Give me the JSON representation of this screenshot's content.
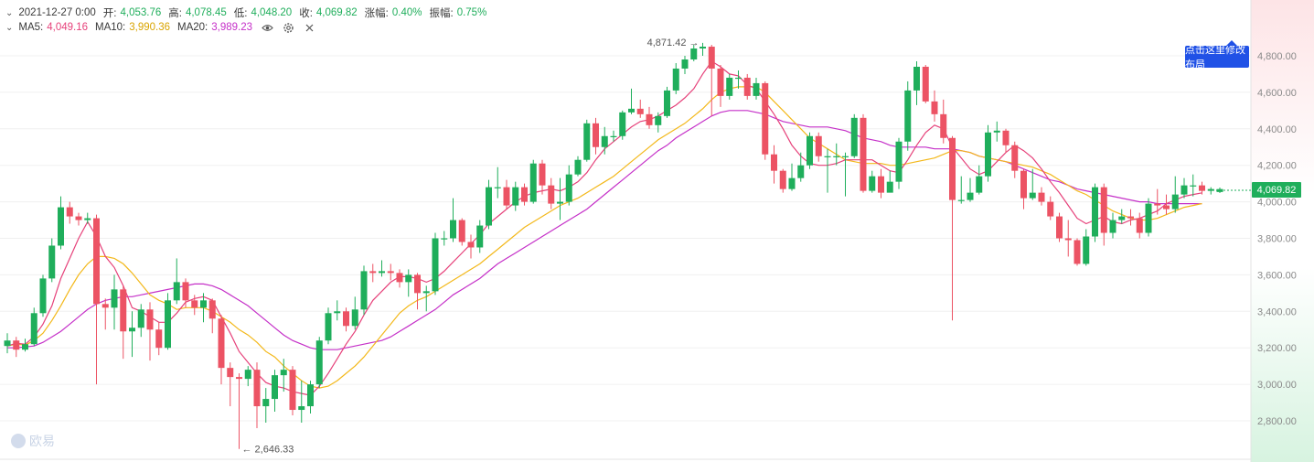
{
  "ohlc_header": {
    "date": "2021-12-27 0:00",
    "open_label": "开:",
    "open": "4,053.76",
    "high_label": "高:",
    "high": "4,078.45",
    "low_label": "低:",
    "low": "4,048.20",
    "close_label": "收:",
    "close": "4,069.82",
    "change_label": "涨幅:",
    "change": "0.40%",
    "amplitude_label": "振幅:",
    "amplitude": "0.75%"
  },
  "ma_header": {
    "ma5_label": "MA5:",
    "ma5": "4,049.16",
    "ma10_label": "MA10:",
    "ma10": "3,990.36",
    "ma20_label": "MA20:",
    "ma20": "3,989.23",
    "icons": [
      "eye-icon",
      "gear-icon",
      "close-icon"
    ]
  },
  "layout_button": "点击这里修改布局",
  "last_price": "4,069.82",
  "watermark": "欧易",
  "colors": {
    "up": "#1fae5b",
    "down": "#ec5364",
    "ma5": "#e6417a",
    "ma10": "#f3b81a",
    "ma20": "#c530c8",
    "tip": "#2051e6"
  },
  "chart_data": {
    "type": "candlestick",
    "y_axis": {
      "ticks": [
        2800,
        3000,
        3200,
        3400,
        3600,
        3800,
        4000,
        4200,
        4400,
        4600,
        4800
      ],
      "tick_labels": [
        "2,800.00",
        "3,000.00",
        "3,200.00",
        "3,400.00",
        "3,600.00",
        "3,800.00",
        "4,000.00",
        "4,200.00",
        "4,400.00",
        "4,600.00",
        "4,800.00"
      ],
      "range": [
        2640,
        4880
      ],
      "grid": true
    },
    "max_annotation": {
      "label": "4,871.42 →",
      "value": 4871.42
    },
    "min_annotation": {
      "label": "← 2,646.33",
      "value": 2646.33
    },
    "candles": [
      [
        3210,
        3240,
        3280,
        3170
      ],
      [
        3240,
        3190,
        3260,
        3150
      ],
      [
        3190,
        3220,
        3250,
        3180
      ],
      [
        3220,
        3390,
        3420,
        3210
      ],
      [
        3390,
        3580,
        3600,
        3370
      ],
      [
        3580,
        3760,
        3800,
        3560
      ],
      [
        3760,
        3970,
        4030,
        3740
      ],
      [
        3970,
        3920,
        4000,
        3880
      ],
      [
        3920,
        3900,
        3940,
        3870
      ],
      [
        3900,
        3910,
        3940,
        3880
      ],
      [
        3910,
        3440,
        3930,
        3000
      ],
      [
        3440,
        3420,
        3470,
        3300
      ],
      [
        3420,
        3520,
        3600,
        3300
      ],
      [
        3520,
        3290,
        3540,
        3140
      ],
      [
        3290,
        3310,
        3400,
        3150
      ],
      [
        3310,
        3410,
        3440,
        3260
      ],
      [
        3410,
        3300,
        3450,
        3130
      ],
      [
        3300,
        3200,
        3340,
        3160
      ],
      [
        3200,
        3460,
        3500,
        3190
      ],
      [
        3460,
        3560,
        3690,
        3440
      ],
      [
        3560,
        3460,
        3580,
        3420
      ],
      [
        3460,
        3420,
        3490,
        3380
      ],
      [
        3420,
        3460,
        3500,
        3340
      ],
      [
        3460,
        3360,
        3470,
        3280
      ],
      [
        3360,
        3090,
        3380,
        3000
      ],
      [
        3090,
        3040,
        3120,
        2880
      ],
      [
        3040,
        3030,
        3060,
        2646
      ],
      [
        3030,
        3080,
        3100,
        2990
      ],
      [
        3080,
        2880,
        3120,
        2760
      ],
      [
        2880,
        2920,
        2980,
        2790
      ],
      [
        2920,
        3050,
        3080,
        2850
      ],
      [
        3050,
        3080,
        3140,
        2960
      ],
      [
        3080,
        2860,
        3100,
        2830
      ],
      [
        2860,
        2880,
        3020,
        2790
      ],
      [
        2880,
        3000,
        3020,
        2840
      ],
      [
        3000,
        3240,
        3260,
        2980
      ],
      [
        3240,
        3390,
        3420,
        3220
      ],
      [
        3390,
        3400,
        3460,
        3350
      ],
      [
        3400,
        3320,
        3420,
        3290
      ],
      [
        3320,
        3410,
        3480,
        3300
      ],
      [
        3410,
        3620,
        3650,
        3380
      ],
      [
        3620,
        3610,
        3660,
        3560
      ],
      [
        3610,
        3620,
        3680,
        3590
      ],
      [
        3620,
        3610,
        3660,
        3570
      ],
      [
        3610,
        3560,
        3630,
        3530
      ],
      [
        3560,
        3600,
        3630,
        3480
      ],
      [
        3600,
        3500,
        3610,
        3410
      ],
      [
        3500,
        3510,
        3540,
        3400
      ],
      [
        3510,
        3800,
        3830,
        3490
      ],
      [
        3800,
        3800,
        3840,
        3760
      ],
      [
        3800,
        3900,
        4020,
        3780
      ],
      [
        3900,
        3780,
        3910,
        3760
      ],
      [
        3780,
        3750,
        3820,
        3690
      ],
      [
        3750,
        3870,
        3900,
        3720
      ],
      [
        3870,
        4080,
        4120,
        3850
      ],
      [
        4080,
        4080,
        4190,
        4020
      ],
      [
        4080,
        3980,
        4120,
        3960
      ],
      [
        3980,
        4080,
        4110,
        3950
      ],
      [
        4080,
        4000,
        4100,
        3980
      ],
      [
        4000,
        4210,
        4230,
        3990
      ],
      [
        4210,
        4090,
        4230,
        4040
      ],
      [
        4090,
        3990,
        4130,
        3960
      ],
      [
        3990,
        4000,
        4130,
        3900
      ],
      [
        4000,
        4150,
        4200,
        3980
      ],
      [
        4150,
        4230,
        4250,
        4140
      ],
      [
        4230,
        4430,
        4450,
        4220
      ],
      [
        4430,
        4300,
        4460,
        4260
      ],
      [
        4300,
        4360,
        4410,
        4260
      ],
      [
        4360,
        4360,
        4390,
        4330
      ],
      [
        4360,
        4490,
        4500,
        4340
      ],
      [
        4490,
        4510,
        4620,
        4480
      ],
      [
        4510,
        4480,
        4560,
        4460
      ],
      [
        4480,
        4420,
        4520,
        4400
      ],
      [
        4420,
        4470,
        4490,
        4380
      ],
      [
        4470,
        4610,
        4630,
        4460
      ],
      [
        4610,
        4730,
        4760,
        4590
      ],
      [
        4730,
        4780,
        4800,
        4700
      ],
      [
        4780,
        4840,
        4860,
        4770
      ],
      [
        4840,
        4850,
        4871,
        4800
      ],
      [
        4850,
        4730,
        4860,
        4470
      ],
      [
        4730,
        4580,
        4750,
        4520
      ],
      [
        4580,
        4680,
        4700,
        4560
      ],
      [
        4680,
        4680,
        4720,
        4620
      ],
      [
        4680,
        4580,
        4700,
        4560
      ],
      [
        4580,
        4650,
        4680,
        4560
      ],
      [
        4650,
        4260,
        4660,
        4230
      ],
      [
        4260,
        4170,
        4310,
        4100
      ],
      [
        4170,
        4070,
        4180,
        4050
      ],
      [
        4070,
        4130,
        4210,
        4060
      ],
      [
        4130,
        4200,
        4270,
        4110
      ],
      [
        4200,
        4360,
        4380,
        4180
      ],
      [
        4360,
        4250,
        4380,
        4220
      ],
      [
        4250,
        4250,
        4290,
        4050
      ],
      [
        4250,
        4250,
        4320,
        4200
      ],
      [
        4250,
        4250,
        4270,
        4030
      ],
      [
        4250,
        4460,
        4480,
        4240
      ],
      [
        4460,
        4060,
        4480,
        4050
      ],
      [
        4060,
        4140,
        4170,
        4050
      ],
      [
        4140,
        4050,
        4180,
        4020
      ],
      [
        4050,
        4110,
        4170,
        4070
      ],
      [
        4110,
        4330,
        4350,
        4070
      ],
      [
        4330,
        4610,
        4660,
        4280
      ],
      [
        4610,
        4740,
        4770,
        4530
      ],
      [
        4740,
        4550,
        4750,
        4540
      ],
      [
        4550,
        4480,
        4610,
        4440
      ],
      [
        4480,
        4350,
        4560,
        4320
      ],
      [
        4350,
        4010,
        4360,
        3350
      ],
      [
        4010,
        4010,
        4140,
        3990
      ],
      [
        4010,
        4050,
        4130,
        4000
      ],
      [
        4050,
        4140,
        4200,
        4040
      ],
      [
        4140,
        4380,
        4420,
        4110
      ],
      [
        4380,
        4390,
        4440,
        4330
      ],
      [
        4390,
        4310,
        4400,
        4270
      ],
      [
        4310,
        4170,
        4330,
        4130
      ],
      [
        4170,
        4020,
        4180,
        3960
      ],
      [
        4020,
        4050,
        4180,
        4010
      ],
      [
        4050,
        4000,
        4080,
        3980
      ],
      [
        4000,
        3920,
        4030,
        3900
      ],
      [
        3920,
        3800,
        3940,
        3780
      ],
      [
        3800,
        3790,
        3900,
        3700
      ],
      [
        3790,
        3660,
        3800,
        3650
      ],
      [
        3660,
        3810,
        3850,
        3650
      ],
      [
        3810,
        4080,
        4100,
        3780
      ],
      [
        4080,
        3830,
        4100,
        3760
      ],
      [
        3830,
        3900,
        3940,
        3800
      ],
      [
        3900,
        3920,
        3960,
        3880
      ],
      [
        3920,
        3910,
        3960,
        3870
      ],
      [
        3910,
        3830,
        3940,
        3800
      ],
      [
        3830,
        3990,
        4020,
        3810
      ],
      [
        3990,
        3980,
        4070,
        3930
      ],
      [
        3980,
        3960,
        4040,
        3930
      ],
      [
        3960,
        4040,
        4140,
        3940
      ],
      [
        4040,
        4090,
        4130,
        4020
      ],
      [
        4090,
        4090,
        4150,
        4030
      ],
      [
        4090,
        4060,
        4110,
        4040
      ],
      [
        4060,
        4070,
        4080,
        4040
      ],
      [
        4053.76,
        4069.82,
        4078.45,
        4048.2
      ]
    ],
    "ma5": [
      3210,
      3225,
      3220,
      3260,
      3330,
      3430,
      3580,
      3690,
      3800,
      3890,
      3810,
      3700,
      3640,
      3540,
      3420,
      3400,
      3370,
      3340,
      3340,
      3390,
      3450,
      3470,
      3480,
      3460,
      3370,
      3280,
      3180,
      3120,
      3060,
      3010,
      2990,
      2980,
      2960,
      2950,
      2940,
      2990,
      3060,
      3140,
      3220,
      3290,
      3380,
      3460,
      3510,
      3560,
      3590,
      3590,
      3580,
      3560,
      3580,
      3620,
      3670,
      3720,
      3770,
      3820,
      3880,
      3920,
      3960,
      4000,
      4030,
      4050,
      4060,
      4070,
      4060,
      4080,
      4110,
      4160,
      4230,
      4290,
      4330,
      4370,
      4410,
      4440,
      4450,
      4470,
      4500,
      4530,
      4570,
      4620,
      4700,
      4770,
      4740,
      4700,
      4690,
      4640,
      4620,
      4550,
      4480,
      4400,
      4310,
      4250,
      4210,
      4200,
      4200,
      4210,
      4230,
      4230,
      4230,
      4230,
      4200,
      4170,
      4160,
      4230,
      4310,
      4380,
      4420,
      4400,
      4300,
      4240,
      4180,
      4150,
      4170,
      4220,
      4270,
      4310,
      4280,
      4240,
      4180,
      4110,
      4050,
      3980,
      3910,
      3880,
      3900,
      3920,
      3890,
      3880,
      3900,
      3910,
      3930,
      3950,
      3990,
      4010,
      4030,
      4040,
      4049.16
    ],
    "ma10": [
      3210,
      3220,
      3215,
      3240,
      3280,
      3350,
      3430,
      3520,
      3600,
      3660,
      3700,
      3700,
      3690,
      3660,
      3610,
      3550,
      3490,
      3460,
      3440,
      3410,
      3420,
      3420,
      3420,
      3400,
      3370,
      3340,
      3300,
      3270,
      3230,
      3180,
      3150,
      3100,
      3060,
      3020,
      2990,
      2980,
      2990,
      3020,
      3060,
      3100,
      3150,
      3210,
      3270,
      3330,
      3390,
      3430,
      3460,
      3480,
      3510,
      3540,
      3570,
      3600,
      3630,
      3660,
      3700,
      3740,
      3780,
      3820,
      3860,
      3890,
      3920,
      3950,
      3980,
      4000,
      4020,
      4050,
      4080,
      4110,
      4140,
      4180,
      4220,
      4260,
      4300,
      4340,
      4370,
      4400,
      4430,
      4470,
      4510,
      4560,
      4600,
      4620,
      4630,
      4630,
      4630,
      4600,
      4550,
      4500,
      4450,
      4400,
      4350,
      4320,
      4290,
      4260,
      4230,
      4220,
      4210,
      4210,
      4210,
      4200,
      4200,
      4210,
      4220,
      4230,
      4240,
      4260,
      4280,
      4280,
      4270,
      4250,
      4240,
      4230,
      4220,
      4210,
      4200,
      4190,
      4170,
      4150,
      4120,
      4090,
      4060,
      4040,
      4010,
      3980,
      3950,
      3930,
      3910,
      3900,
      3900,
      3910,
      3930,
      3950,
      3970,
      3980,
      3990.36
    ],
    "ma20": [
      3200,
      3200,
      3205,
      3210,
      3230,
      3260,
      3290,
      3330,
      3370,
      3410,
      3440,
      3460,
      3470,
      3480,
      3480,
      3490,
      3500,
      3510,
      3520,
      3530,
      3540,
      3550,
      3550,
      3540,
      3520,
      3490,
      3460,
      3430,
      3390,
      3350,
      3310,
      3270,
      3240,
      3220,
      3200,
      3190,
      3190,
      3190,
      3200,
      3210,
      3220,
      3230,
      3240,
      3260,
      3290,
      3320,
      3350,
      3380,
      3410,
      3450,
      3490,
      3520,
      3550,
      3580,
      3620,
      3660,
      3690,
      3720,
      3750,
      3780,
      3810,
      3840,
      3870,
      3900,
      3930,
      3960,
      4000,
      4040,
      4080,
      4120,
      4160,
      4200,
      4240,
      4280,
      4310,
      4350,
      4380,
      4410,
      4440,
      4470,
      4490,
      4500,
      4500,
      4500,
      4490,
      4480,
      4460,
      4440,
      4430,
      4420,
      4410,
      4410,
      4410,
      4400,
      4390,
      4370,
      4350,
      4340,
      4330,
      4310,
      4300,
      4300,
      4300,
      4300,
      4290,
      4290,
      4290,
      4280,
      4270,
      4250,
      4240,
      4230,
      4220,
      4200,
      4180,
      4160,
      4140,
      4120,
      4110,
      4090,
      4070,
      4060,
      4050,
      4040,
      4030,
      4020,
      4010,
      4000,
      4000,
      3990,
      3990,
      3990,
      3990,
      3990,
      3989.23
    ]
  }
}
